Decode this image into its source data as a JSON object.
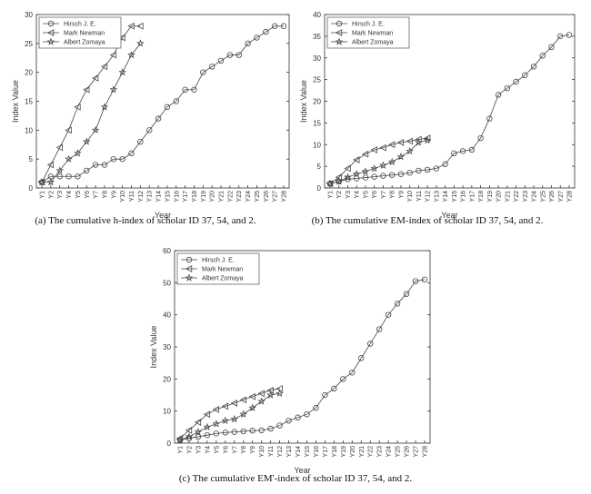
{
  "chart_data": [
    {
      "type": "line",
      "caption": "(a) The cumulative h-index of scholar ID 37, 54, and 2.",
      "x_label": "Year",
      "y_label": "Index Value",
      "categories": [
        "Y1",
        "Y2",
        "Y3",
        "Y4",
        "Y5",
        "Y6",
        "Y7",
        "Y8",
        "Y9",
        "Y10",
        "Y11",
        "Y12",
        "Y13",
        "Y14",
        "Y15",
        "Y16",
        "Y17",
        "Y18",
        "Y19",
        "Y20",
        "Y21",
        "Y22",
        "Y23",
        "Y24",
        "Y25",
        "Y26",
        "Y27",
        "Y28"
      ],
      "ylim": [
        0,
        30
      ],
      "yticks": [
        0,
        5,
        10,
        15,
        20,
        25,
        30
      ],
      "legend": "upper-left",
      "series": [
        {
          "name": "Hirsch J. E.",
          "color": "#444444",
          "marker": "circle",
          "values": [
            1,
            2,
            2,
            2,
            2,
            3,
            4,
            4,
            5,
            5,
            6,
            8,
            10,
            12,
            14,
            15,
            17,
            17,
            20,
            21,
            22,
            23,
            23,
            25,
            26,
            27,
            28,
            28
          ]
        },
        {
          "name": "Mark Newman",
          "color": "#444444",
          "marker": "triangle-left",
          "values": [
            1,
            4,
            7,
            10,
            14,
            17,
            19,
            21,
            23,
            26,
            28,
            28,
            null,
            null,
            null,
            null,
            null,
            null,
            null,
            null,
            null,
            null,
            null,
            null,
            null,
            null,
            null,
            null
          ]
        },
        {
          "name": "Albert Zomaya",
          "color": "#444444",
          "marker": "star",
          "values": [
            1,
            1,
            3,
            5,
            6,
            8,
            10,
            14,
            17,
            20,
            23,
            25,
            null,
            null,
            null,
            null,
            null,
            null,
            null,
            null,
            null,
            null,
            null,
            null,
            null,
            null,
            null,
            null
          ]
        }
      ]
    },
    {
      "type": "line",
      "caption": "(b) The cumulative EM-index of scholar ID 37, 54, and 2.",
      "x_label": "Year",
      "y_label": "Index Value",
      "categories": [
        "Y1",
        "Y2",
        "Y3",
        "Y4",
        "Y5",
        "Y6",
        "Y7",
        "Y8",
        "Y9",
        "Y10",
        "Y11",
        "Y12",
        "Y13",
        "Y14",
        "Y15",
        "Y16",
        "Y17",
        "Y18",
        "Y19",
        "Y20",
        "Y21",
        "Y22",
        "Y23",
        "Y24",
        "Y25",
        "Y26",
        "Y27",
        "Y28"
      ],
      "ylim": [
        0,
        40
      ],
      "yticks": [
        0,
        5,
        10,
        15,
        20,
        25,
        30,
        35,
        40
      ],
      "legend": "upper-left",
      "series": [
        {
          "name": "Hirsch J. E.",
          "color": "#444444",
          "marker": "circle",
          "values": [
            1,
            1.5,
            2,
            2.2,
            2.4,
            2.6,
            2.8,
            3,
            3.2,
            3.5,
            4,
            4.2,
            4.5,
            5.5,
            8,
            8.5,
            8.8,
            11.5,
            16,
            21.5,
            23,
            24.5,
            26,
            28,
            30.5,
            32.5,
            35,
            35.3
          ]
        },
        {
          "name": "Mark Newman",
          "color": "#444444",
          "marker": "triangle-left",
          "values": [
            1,
            2.5,
            4.5,
            6.5,
            7.8,
            8.8,
            9.3,
            10,
            10.5,
            10.8,
            11.2,
            11.5,
            null,
            null,
            null,
            null,
            null,
            null,
            null,
            null,
            null,
            null,
            null,
            null,
            null,
            null,
            null,
            null
          ]
        },
        {
          "name": "Albert Zomaya",
          "color": "#444444",
          "marker": "star",
          "values": [
            1,
            1.5,
            2.5,
            3.2,
            3.8,
            4.5,
            5.2,
            6,
            7.2,
            8.5,
            10.5,
            11,
            null,
            null,
            null,
            null,
            null,
            null,
            null,
            null,
            null,
            null,
            null,
            null,
            null,
            null,
            null,
            null
          ]
        }
      ]
    },
    {
      "type": "line",
      "caption": "(c) The cumulative EM'-index of scholar ID 37, 54, and 2.",
      "x_label": "Year",
      "y_label": "Index Value",
      "categories": [
        "Y1",
        "Y2",
        "Y3",
        "Y4",
        "Y5",
        "Y6",
        "Y7",
        "Y8",
        "Y9",
        "Y10",
        "Y11",
        "Y12",
        "Y13",
        "Y14",
        "Y15",
        "Y16",
        "Y17",
        "Y18",
        "Y19",
        "Y20",
        "Y21",
        "Y22",
        "Y23",
        "Y24",
        "Y25",
        "Y26",
        "Y27",
        "Y28"
      ],
      "ylim": [
        0,
        60
      ],
      "yticks": [
        0,
        10,
        20,
        30,
        40,
        50,
        60
      ],
      "legend": "upper-left",
      "series": [
        {
          "name": "Hirsch J. E.",
          "color": "#444444",
          "marker": "circle",
          "values": [
            1,
            1.5,
            2,
            2.5,
            3,
            3.3,
            3.5,
            3.7,
            3.9,
            4,
            4.5,
            5.5,
            7,
            8,
            9,
            11,
            15,
            17,
            20,
            22,
            26.5,
            31,
            35.5,
            40,
            43.5,
            46.5,
            50.5,
            51
          ]
        },
        {
          "name": "Mark Newman",
          "color": "#444444",
          "marker": "triangle-left",
          "values": [
            1.5,
            4,
            6.5,
            9,
            10.5,
            11.5,
            12.5,
            13.5,
            14.5,
            15.5,
            16.5,
            17,
            null,
            null,
            null,
            null,
            null,
            null,
            null,
            null,
            null,
            null,
            null,
            null,
            null,
            null,
            null,
            null
          ]
        },
        {
          "name": "Albert Zomaya",
          "color": "#444444",
          "marker": "star",
          "values": [
            1,
            2,
            3.5,
            5,
            6,
            7,
            7.5,
            9,
            11,
            13,
            15,
            15.5,
            null,
            null,
            null,
            null,
            null,
            null,
            null,
            null,
            null,
            null,
            null,
            null,
            null,
            null,
            null,
            null
          ]
        }
      ]
    }
  ]
}
